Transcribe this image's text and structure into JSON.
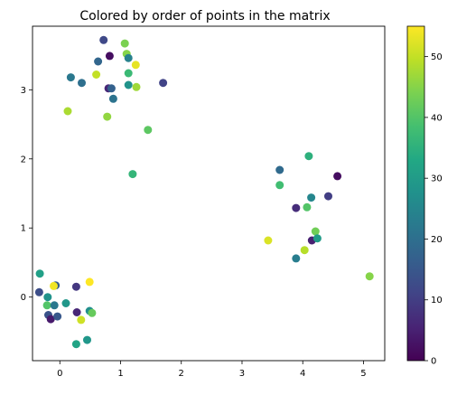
{
  "chart_data": {
    "type": "scatter",
    "title": "Colored by order of points in the matrix",
    "xlabel": "",
    "ylabel": "",
    "xlim": [
      -0.45,
      5.35
    ],
    "ylim": [
      -0.92,
      3.92
    ],
    "xticks": [
      0,
      1,
      2,
      3,
      4,
      5
    ],
    "yticks": [
      0,
      1,
      2,
      3
    ],
    "grid": false,
    "colormap": "viridis",
    "colorbar": {
      "min": 0,
      "max": 55,
      "ticks": [
        0,
        10,
        20,
        30,
        40,
        50
      ]
    },
    "points": [
      {
        "x": 0.72,
        "y": 3.72,
        "c": 12
      },
      {
        "x": 0.82,
        "y": 3.49,
        "c": 2
      },
      {
        "x": 0.63,
        "y": 3.41,
        "c": 18
      },
      {
        "x": 1.07,
        "y": 3.67,
        "c": 44
      },
      {
        "x": 1.1,
        "y": 3.52,
        "c": 45
      },
      {
        "x": 1.13,
        "y": 3.46,
        "c": 24
      },
      {
        "x": 1.25,
        "y": 3.36,
        "c": 53
      },
      {
        "x": 0.18,
        "y": 3.18,
        "c": 22
      },
      {
        "x": 0.36,
        "y": 3.1,
        "c": 20
      },
      {
        "x": 0.6,
        "y": 3.22,
        "c": 50
      },
      {
        "x": 0.8,
        "y": 3.02,
        "c": 6
      },
      {
        "x": 0.85,
        "y": 3.02,
        "c": 17
      },
      {
        "x": 0.88,
        "y": 2.87,
        "c": 21
      },
      {
        "x": 1.13,
        "y": 3.24,
        "c": 37
      },
      {
        "x": 1.13,
        "y": 3.07,
        "c": 28
      },
      {
        "x": 1.26,
        "y": 3.04,
        "c": 47
      },
      {
        "x": 1.7,
        "y": 3.1,
        "c": 11
      },
      {
        "x": 0.13,
        "y": 2.69,
        "c": 48
      },
      {
        "x": 0.78,
        "y": 2.61,
        "c": 46
      },
      {
        "x": 1.45,
        "y": 2.42,
        "c": 41
      },
      {
        "x": 1.2,
        "y": 1.78,
        "c": 36
      },
      {
        "x": 3.62,
        "y": 1.84,
        "c": 19
      },
      {
        "x": 4.1,
        "y": 2.04,
        "c": 35
      },
      {
        "x": 4.57,
        "y": 1.75,
        "c": 2
      },
      {
        "x": 3.62,
        "y": 1.62,
        "c": 38
      },
      {
        "x": 4.14,
        "y": 1.44,
        "c": 25
      },
      {
        "x": 4.42,
        "y": 1.46,
        "c": 10
      },
      {
        "x": 3.89,
        "y": 1.29,
        "c": 7
      },
      {
        "x": 4.07,
        "y": 1.3,
        "c": 40
      },
      {
        "x": 4.21,
        "y": 0.95,
        "c": 43
      },
      {
        "x": 4.15,
        "y": 0.82,
        "c": 5
      },
      {
        "x": 4.24,
        "y": 0.85,
        "c": 30
      },
      {
        "x": 3.43,
        "y": 0.82,
        "c": 52
      },
      {
        "x": 4.03,
        "y": 0.68,
        "c": 49
      },
      {
        "x": 3.89,
        "y": 0.56,
        "c": 23
      },
      {
        "x": 5.1,
        "y": 0.3,
        "c": 45
      },
      {
        "x": -0.33,
        "y": 0.34,
        "c": 31
      },
      {
        "x": -0.34,
        "y": 0.07,
        "c": 13
      },
      {
        "x": -0.2,
        "y": 0.0,
        "c": 28
      },
      {
        "x": -0.07,
        "y": 0.17,
        "c": 16
      },
      {
        "x": -0.1,
        "y": 0.16,
        "c": 54
      },
      {
        "x": 0.27,
        "y": 0.15,
        "c": 9
      },
      {
        "x": 0.49,
        "y": 0.22,
        "c": 55
      },
      {
        "x": -0.21,
        "y": -0.12,
        "c": 40
      },
      {
        "x": -0.09,
        "y": -0.12,
        "c": 22
      },
      {
        "x": 0.1,
        "y": -0.09,
        "c": 29
      },
      {
        "x": -0.19,
        "y": -0.26,
        "c": 14
      },
      {
        "x": -0.15,
        "y": -0.32,
        "c": 4
      },
      {
        "x": -0.04,
        "y": -0.28,
        "c": 15
      },
      {
        "x": 0.28,
        "y": -0.22,
        "c": 6
      },
      {
        "x": 0.49,
        "y": -0.2,
        "c": 27
      },
      {
        "x": 0.53,
        "y": -0.23,
        "c": 42
      },
      {
        "x": 0.35,
        "y": -0.33,
        "c": 51
      },
      {
        "x": 0.45,
        "y": -0.62,
        "c": 29
      },
      {
        "x": 0.27,
        "y": -0.68,
        "c": 32
      }
    ]
  }
}
